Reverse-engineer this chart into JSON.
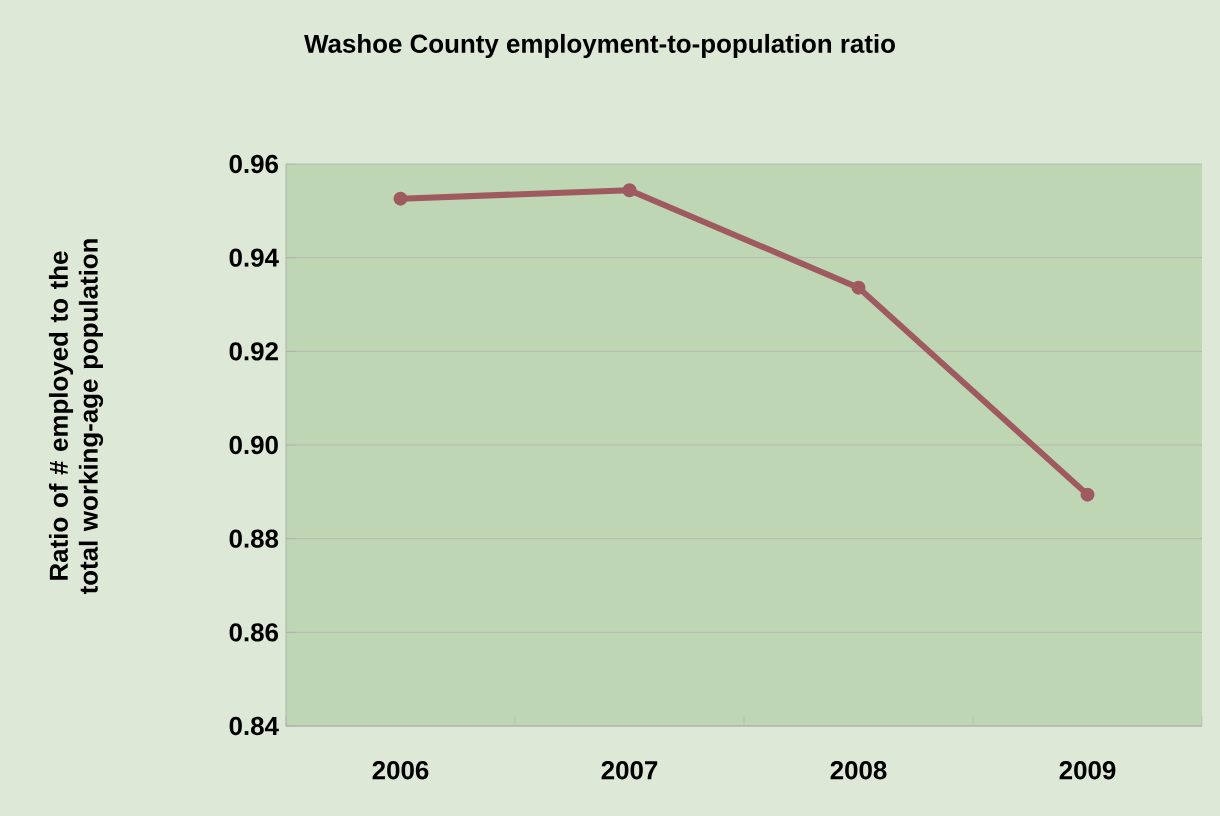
{
  "chart_data": {
    "type": "line",
    "title": "Washoe County employment-to-population ratio",
    "ylabel": "Ratio of # employed to the total working-age population",
    "categories": [
      "2006",
      "2007",
      "2008",
      "2009"
    ],
    "series": [
      {
        "color": "#9e5a5f",
        "values": [
          0.9526,
          0.9544,
          0.9336,
          0.8894
        ]
      }
    ],
    "ylim": [
      0.84,
      0.96
    ],
    "yticks": [
      0.84,
      0.86,
      0.88,
      {
        "value": 0.9,
        "label": "0.90"
      },
      0.92,
      0.94,
      0.96
    ],
    "grid": "y",
    "marker": "circle",
    "line_style": "solid"
  }
}
